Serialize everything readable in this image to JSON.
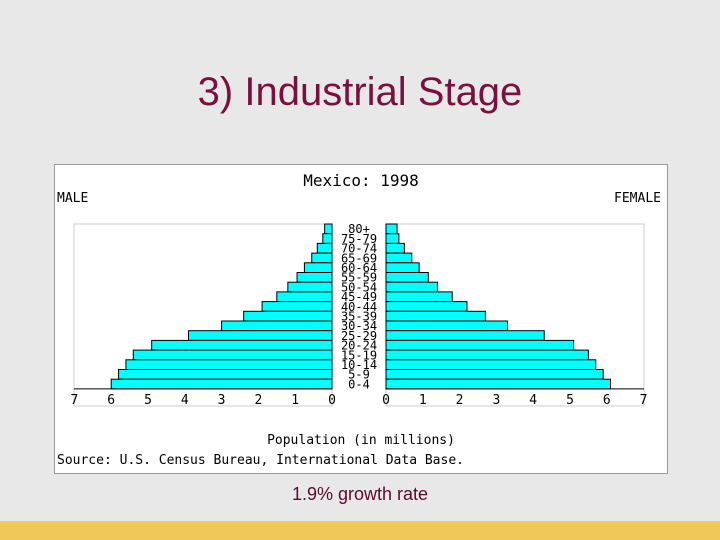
{
  "slide": {
    "title": "3) Industrial Stage",
    "caption": "1.9% growth rate"
  },
  "colors": {
    "bar_fill": "#00ffff",
    "bar_stroke": "#000000",
    "title": "#7a1040",
    "bottom_bar": "#f0c85a"
  },
  "chart_data": {
    "type": "bar",
    "title": "Mexico: 1998",
    "left_label": "MALE",
    "right_label": "FEMALE",
    "xlabel": "Population (in millions)",
    "source": "Source: U.S. Census Bureau, International Data Base.",
    "xlim": [
      0,
      7
    ],
    "ticks": [
      0,
      1,
      2,
      3,
      4,
      5,
      6,
      7
    ],
    "categories": [
      "80+",
      "75-79",
      "70-74",
      "65-69",
      "60-64",
      "55-59",
      "50-54",
      "45-49",
      "40-44",
      "35-39",
      "30-34",
      "25-29",
      "20-24",
      "15-19",
      "10-14",
      "5-9",
      "0-4"
    ],
    "series": [
      {
        "name": "MALE",
        "values": [
          0.2,
          0.25,
          0.4,
          0.55,
          0.75,
          0.95,
          1.2,
          1.5,
          1.9,
          2.4,
          3.0,
          3.9,
          4.9,
          5.4,
          5.6,
          5.8,
          6.0
        ]
      },
      {
        "name": "FEMALE",
        "values": [
          0.3,
          0.35,
          0.5,
          0.7,
          0.9,
          1.15,
          1.4,
          1.8,
          2.2,
          2.7,
          3.3,
          4.3,
          5.1,
          5.5,
          5.7,
          5.9,
          6.1
        ]
      }
    ]
  }
}
